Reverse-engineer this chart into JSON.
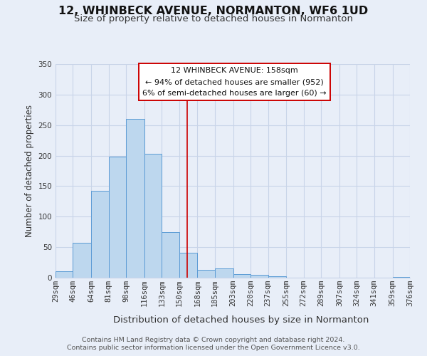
{
  "title": "12, WHINBECK AVENUE, NORMANTON, WF6 1UD",
  "subtitle": "Size of property relative to detached houses in Normanton",
  "xlabel": "Distribution of detached houses by size in Normanton",
  "ylabel": "Number of detached properties",
  "bin_edges": [
    29,
    46,
    64,
    81,
    98,
    116,
    133,
    150,
    168,
    185,
    203,
    220,
    237,
    255,
    272,
    289,
    307,
    324,
    341,
    359,
    376
  ],
  "bin_labels": [
    "29sqm",
    "46sqm",
    "64sqm",
    "81sqm",
    "98sqm",
    "116sqm",
    "133sqm",
    "150sqm",
    "168sqm",
    "185sqm",
    "203sqm",
    "220sqm",
    "237sqm",
    "255sqm",
    "272sqm",
    "289sqm",
    "307sqm",
    "324sqm",
    "341sqm",
    "359sqm",
    "376sqm"
  ],
  "counts": [
    10,
    57,
    142,
    198,
    260,
    203,
    75,
    41,
    13,
    15,
    6,
    5,
    2,
    0,
    0,
    0,
    0,
    0,
    0,
    1
  ],
  "bar_color": "#bdd7ee",
  "bar_edge_color": "#5b9bd5",
  "vline_x": 158,
  "vline_color": "#cc0000",
  "annotation_line1": "12 WHINBECK AVENUE: 158sqm",
  "annotation_line2": "← 94% of detached houses are smaller (952)",
  "annotation_line3": "6% of semi-detached houses are larger (60) →",
  "annotation_box_facecolor": "#ffffff",
  "annotation_box_edgecolor": "#cc0000",
  "ylim": [
    0,
    350
  ],
  "background_color": "#e8eef8",
  "grid_color": "#c8d4e8",
  "footer_line1": "Contains HM Land Registry data © Crown copyright and database right 2024.",
  "footer_line2": "Contains public sector information licensed under the Open Government Licence v3.0.",
  "title_fontsize": 11.5,
  "subtitle_fontsize": 9.5,
  "xlabel_fontsize": 9.5,
  "ylabel_fontsize": 8.5,
  "tick_fontsize": 7.5,
  "annotation_fontsize": 8.0,
  "footer_fontsize": 6.8
}
